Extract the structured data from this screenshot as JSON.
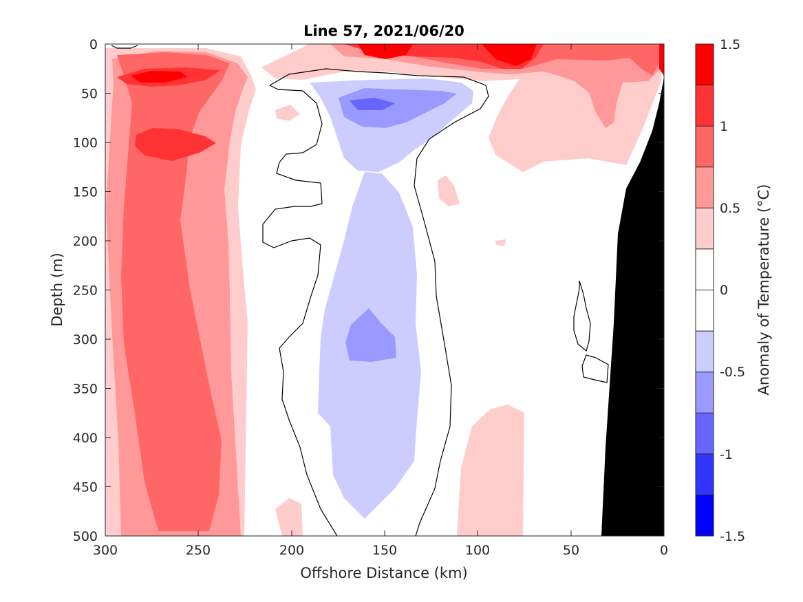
{
  "chart_data": {
    "type": "heatmap",
    "title": "Line 57, 2021/06/20",
    "xlabel": "Offshore Distance (km)",
    "ylabel": "Depth (m)",
    "xlim": [
      300,
      0
    ],
    "ylim": [
      0,
      500
    ],
    "x_reversed": true,
    "y_reversed": true,
    "x_ticks": [
      "300",
      "250",
      "200",
      "150",
      "100",
      "50",
      "0"
    ],
    "y_ticks": [
      "0",
      "50",
      "100",
      "150",
      "200",
      "250",
      "300",
      "350",
      "400",
      "450",
      "500"
    ],
    "colorbar": {
      "label": "Anomaly of Temperature (°C)",
      "range": [
        -1.5,
        1.5
      ],
      "ticks": [
        "1.5",
        "1",
        "0.5",
        "0",
        "-0.5",
        "-1",
        "-1.5"
      ],
      "levels": [
        {
          "from": 1.25,
          "to": 1.5,
          "color": "#ff0000"
        },
        {
          "from": 1.0,
          "to": 1.25,
          "color": "#ff3333"
        },
        {
          "from": 0.75,
          "to": 1.0,
          "color": "#ff6666"
        },
        {
          "from": 0.5,
          "to": 0.75,
          "color": "#ff9999"
        },
        {
          "from": 0.25,
          "to": 0.5,
          "color": "#ffcccc"
        },
        {
          "from": 0.0,
          "to": 0.25,
          "color": "#ffffff"
        },
        {
          "from": -0.25,
          "to": 0.0,
          "color": "#ffffff"
        },
        {
          "from": -0.5,
          "to": -0.25,
          "color": "#ccccff"
        },
        {
          "from": -0.75,
          "to": -0.5,
          "color": "#9999ff"
        },
        {
          "from": -1.0,
          "to": -0.75,
          "color": "#6666ff"
        },
        {
          "from": -1.25,
          "to": -1.0,
          "color": "#3333ff"
        },
        {
          "from": -1.5,
          "to": -1.25,
          "color": "#0000ff"
        }
      ]
    },
    "features": [
      {
        "kind": "warm-core",
        "x_km": [
          280,
          220
        ],
        "y_m": [
          20,
          500
        ],
        "max_anomaly": 1.25
      },
      {
        "kind": "warm-surface",
        "x_km": [
          160,
          60
        ],
        "y_m": [
          0,
          30
        ],
        "max_anomaly": 1.5
      },
      {
        "kind": "cold-core",
        "x_km": [
          185,
          100
        ],
        "y_m": [
          40,
          490
        ],
        "min_anomaly": -1.0
      },
      {
        "kind": "bathymetry",
        "x_km": [
          35,
          0
        ],
        "y_m": [
          40,
          500
        ],
        "color": "#000000"
      }
    ]
  }
}
